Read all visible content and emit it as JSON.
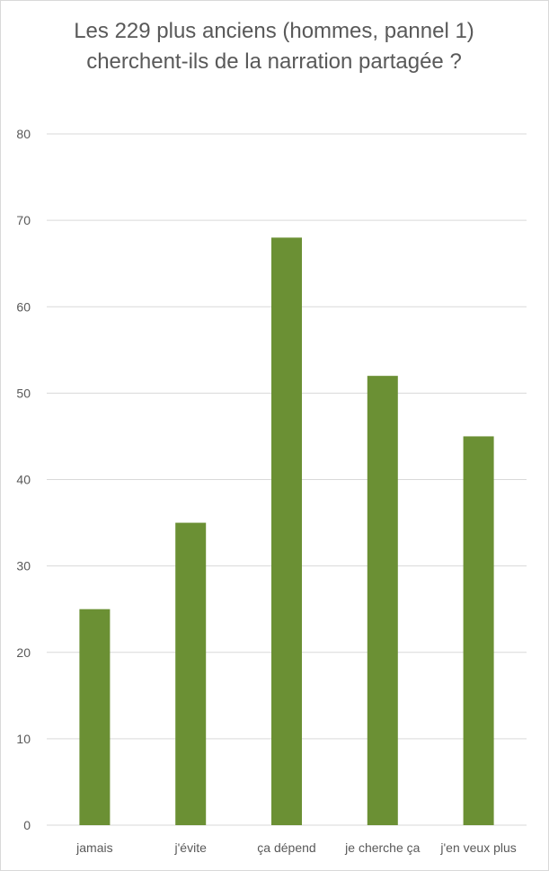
{
  "chart_data": {
    "type": "bar",
    "title": "Les 229 plus anciens (hommes, pannel 1) cherchent-ils de la narration partagée ?",
    "categories": [
      "jamais",
      "j'évite",
      "ça dépend",
      "je cherche ça",
      "j'en veux plus"
    ],
    "series": [
      {
        "values": [
          25,
          35,
          68,
          52,
          45
        ]
      }
    ],
    "ylim": [
      0,
      80
    ],
    "yticks": [
      0,
      10,
      20,
      30,
      40,
      50,
      60,
      70,
      80
    ],
    "grid": true,
    "legend": "none",
    "bar_color": "#6b9034",
    "grid_color": "#d9d9d9",
    "text_color": "#595959"
  }
}
